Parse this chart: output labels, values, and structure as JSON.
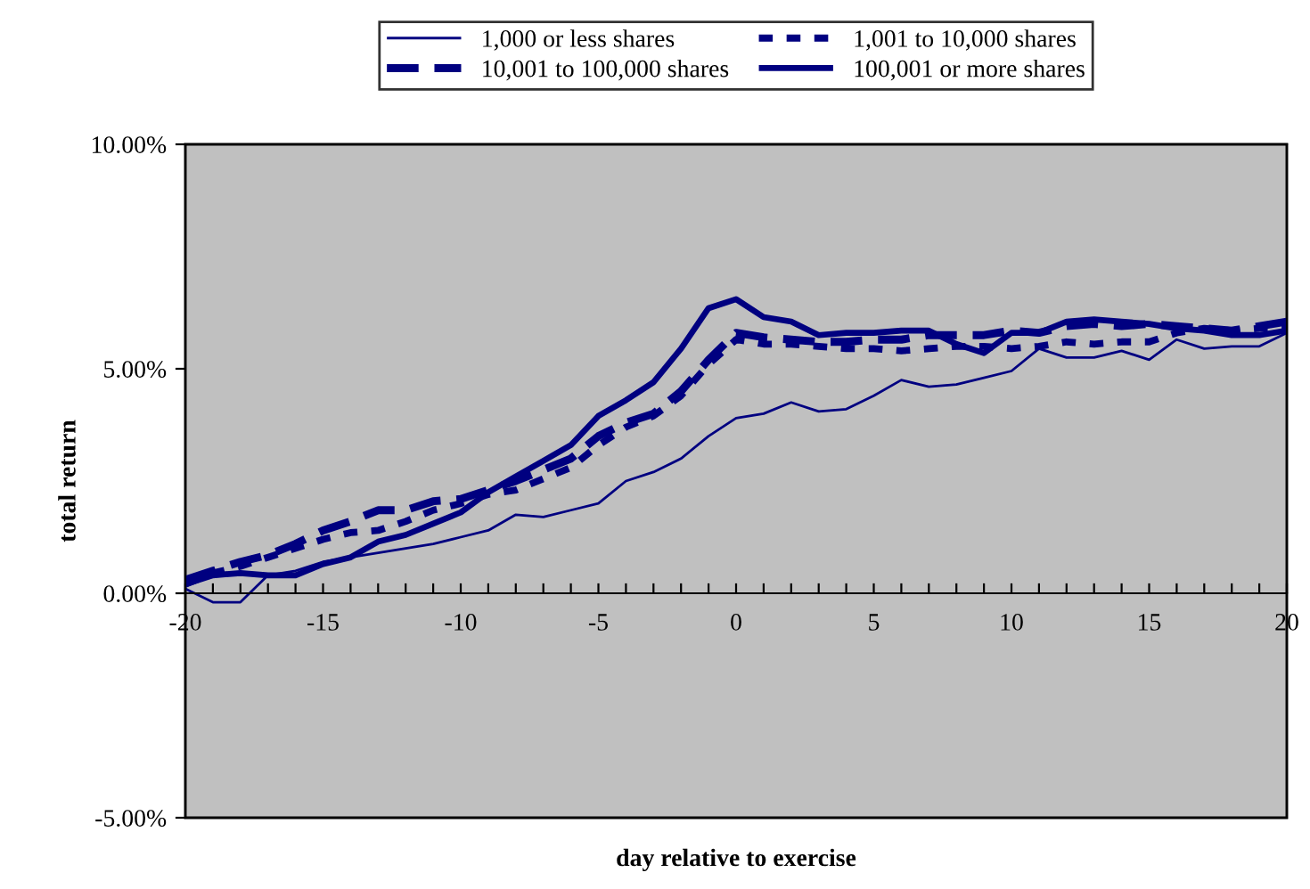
{
  "chart_data": {
    "type": "line",
    "xlabel": "day relative to exercise",
    "ylabel": "total return",
    "x": [
      -20,
      -19,
      -18,
      -17,
      -16,
      -15,
      -14,
      -13,
      -12,
      -11,
      -10,
      -9,
      -8,
      -7,
      -6,
      -5,
      -4,
      -3,
      -2,
      -1,
      0,
      1,
      2,
      3,
      4,
      5,
      6,
      7,
      8,
      9,
      10,
      11,
      12,
      13,
      14,
      15,
      16,
      17,
      18,
      19,
      20
    ],
    "series": [
      {
        "name": "1,000 or less shares",
        "color": "#000080",
        "line_style": "solid",
        "values": [
          0.1,
          -0.2,
          -0.2,
          0.4,
          0.5,
          0.7,
          0.8,
          0.9,
          1.0,
          1.1,
          1.25,
          1.4,
          1.75,
          1.7,
          1.85,
          2.0,
          2.5,
          2.7,
          3.0,
          3.5,
          3.9,
          4.0,
          4.25,
          4.05,
          4.1,
          4.4,
          4.75,
          4.6,
          4.65,
          4.8,
          4.95,
          5.45,
          5.25,
          5.25,
          5.4,
          5.2,
          5.65,
          5.45,
          5.5,
          5.5,
          5.8
        ]
      },
      {
        "name": "1,001 to 10,000 shares",
        "color": "#000080",
        "line_style": "dotted",
        "values": [
          0.2,
          0.45,
          0.6,
          0.8,
          1.0,
          1.2,
          1.35,
          1.4,
          1.6,
          1.85,
          2.0,
          2.2,
          2.3,
          2.55,
          2.8,
          3.3,
          3.7,
          3.95,
          4.4,
          5.1,
          5.65,
          5.55,
          5.55,
          5.5,
          5.45,
          5.45,
          5.4,
          5.45,
          5.5,
          5.5,
          5.45,
          5.5,
          5.6,
          5.55,
          5.6,
          5.6,
          5.8,
          5.9,
          5.85,
          5.9,
          5.9
        ]
      },
      {
        "name": "10,001 to 100,000 shares",
        "color": "#000080",
        "line_style": "dashed",
        "values": [
          0.3,
          0.5,
          0.7,
          0.85,
          1.1,
          1.4,
          1.6,
          1.85,
          1.85,
          2.05,
          2.1,
          2.3,
          2.5,
          2.75,
          3.0,
          3.5,
          3.8,
          4.0,
          4.5,
          5.2,
          5.8,
          5.7,
          5.65,
          5.6,
          5.6,
          5.65,
          5.65,
          5.75,
          5.75,
          5.75,
          5.85,
          5.8,
          5.95,
          6.0,
          5.95,
          6.0,
          5.95,
          5.9,
          5.85,
          5.95,
          6.05
        ]
      },
      {
        "name": "100,001 or more shares",
        "color": "#000080",
        "line_style": "solid",
        "values": [
          0.2,
          0.4,
          0.45,
          0.4,
          0.4,
          0.65,
          0.8,
          1.15,
          1.3,
          1.55,
          1.8,
          2.25,
          2.6,
          2.95,
          3.3,
          3.95,
          4.3,
          4.7,
          5.45,
          6.35,
          6.55,
          6.15,
          6.05,
          5.75,
          5.8,
          5.8,
          5.85,
          5.85,
          5.55,
          5.35,
          5.8,
          5.8,
          6.05,
          6.1,
          6.05,
          6.0,
          5.9,
          5.85,
          5.75,
          5.75,
          5.85
        ]
      }
    ],
    "xlim": [
      -20,
      20
    ],
    "xticks": [
      -20,
      {
        "value": -19,
        "label": null
      },
      {
        "value": -18,
        "label": null
      },
      {
        "value": -17,
        "label": null
      },
      {
        "value": -16,
        "label": null
      },
      -15,
      {
        "value": -14,
        "label": null
      },
      {
        "value": -13,
        "label": null
      },
      {
        "value": -12,
        "label": null
      },
      {
        "value": -11,
        "label": null
      },
      -10,
      {
        "value": -9,
        "label": null
      },
      {
        "value": -8,
        "label": null
      },
      {
        "value": -7,
        "label": null
      },
      {
        "value": -6,
        "label": null
      },
      -5,
      {
        "value": -4,
        "label": null
      },
      {
        "value": -3,
        "label": null
      },
      {
        "value": -2,
        "label": null
      },
      {
        "value": -1,
        "label": null
      },
      0,
      {
        "value": 1,
        "label": null
      },
      {
        "value": 2,
        "label": null
      },
      {
        "value": 3,
        "label": null
      },
      {
        "value": 4,
        "label": null
      },
      5,
      {
        "value": 6,
        "label": null
      },
      {
        "value": 7,
        "label": null
      },
      {
        "value": 8,
        "label": null
      },
      {
        "value": 9,
        "label": null
      },
      10,
      {
        "value": 11,
        "label": null
      },
      {
        "value": 12,
        "label": null
      },
      {
        "value": 13,
        "label": null
      },
      {
        "value": 14,
        "label": null
      },
      15,
      {
        "value": 16,
        "label": null
      },
      {
        "value": 17,
        "label": null
      },
      {
        "value": 18,
        "label": null
      },
      {
        "value": 19,
        "label": null
      },
      20
    ],
    "ylim": [
      -5,
      10
    ],
    "yticks": [
      {
        "value": -5,
        "label": "-5.00%"
      },
      {
        "value": 0,
        "label": "0.00%"
      },
      {
        "value": 5,
        "label": "5.00%"
      },
      {
        "value": 10,
        "label": "10.00%"
      }
    ],
    "grid": false,
    "legend": "top",
    "marker": "none"
  }
}
